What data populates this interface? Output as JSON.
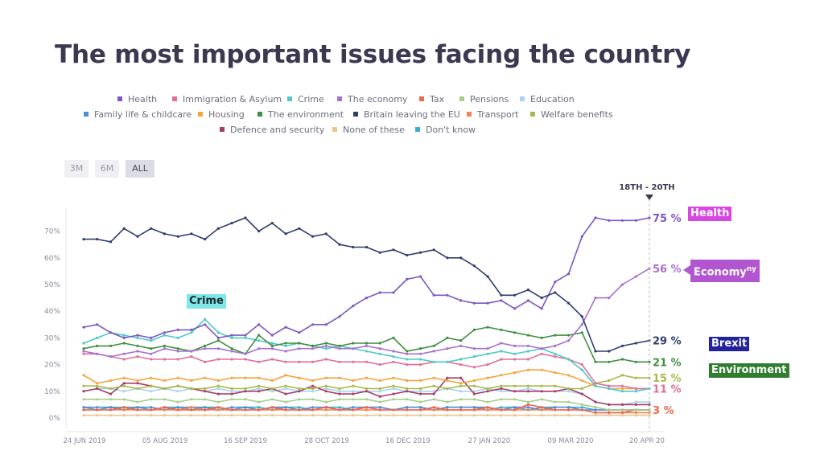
{
  "page": {
    "title": "The most important issues facing the country"
  },
  "controls": {
    "ranges": [
      {
        "label": "3M",
        "active": false
      },
      {
        "label": "6M",
        "active": false
      },
      {
        "label": "ALL",
        "active": true
      }
    ]
  },
  "legend": [
    {
      "name": "Health",
      "color": "#7e57c2"
    },
    {
      "name": "Immigration & Asylum",
      "color": "#e0709a"
    },
    {
      "name": "Crime",
      "color": "#4fc9c9"
    },
    {
      "name": "The economy",
      "color": "#a871cf"
    },
    {
      "name": "Tax",
      "color": "#f0674b"
    },
    {
      "name": "Pensions",
      "color": "#a6cf8c"
    },
    {
      "name": "Education",
      "color": "#a9d3ee"
    },
    {
      "name": "Family life & childcare",
      "color": "#4f8fd8"
    },
    {
      "name": "Housing",
      "color": "#f5a33d"
    },
    {
      "name": "The environment",
      "color": "#3f8f3f"
    },
    {
      "name": "Britain leaving the EU",
      "color": "#2e3f6e"
    },
    {
      "name": "Transport",
      "color": "#f28452"
    },
    {
      "name": "Welfare benefits",
      "color": "#a9b947"
    },
    {
      "name": "Defence and security",
      "color": "#a63e6a"
    },
    {
      "name": "None of these",
      "color": "#eec48c"
    },
    {
      "name": "Don't know",
      "color": "#3aaed0"
    }
  ],
  "annotations": {
    "date_marker": "18TH - 20TH",
    "crime_tag": "Crime",
    "health_tag": "Health",
    "economy_tag": "Economy",
    "economy_tag_suffix": "ny",
    "brexit_tag": "Brexit",
    "environment_tag": "Environment",
    "colors": {
      "crime_bg": "#7fe7e7",
      "crime_fg": "#1e2a30",
      "health_bg": "#d845e0",
      "economy_bg": "#b155d0",
      "brexit_bg": "#23239c",
      "environment_bg": "#2f7d2f"
    }
  },
  "end_labels": [
    {
      "text": "75 %",
      "value": 75,
      "color": "#7e57c2"
    },
    {
      "text": "56 %",
      "value": 56,
      "color": "#a871cf"
    },
    {
      "text": "29 %",
      "value": 29,
      "color": "#2e3f6e"
    },
    {
      "text": "21 %",
      "value": 21,
      "color": "#3f8f3f"
    },
    {
      "text": "15 %",
      "value": 15,
      "color": "#a9b947"
    },
    {
      "text": "11 %",
      "value": 11,
      "color": "#e0709a"
    },
    {
      "text": "3 %",
      "value": 3,
      "color": "#f0674b"
    }
  ],
  "chart_data": {
    "type": "line",
    "title": "The most important issues facing the country",
    "xlabel": "",
    "ylabel": "",
    "ylim": [
      0,
      75
    ],
    "yticks": [
      "0%",
      "10%",
      "20%",
      "30%",
      "40%",
      "50%",
      "60%",
      "70%"
    ],
    "ytick_values": [
      0,
      10,
      20,
      30,
      40,
      50,
      60,
      70
    ],
    "xticks": [
      "24 JUN 2019",
      "05 AUG 2019",
      "16 SEP 2019",
      "28 OCT 2019",
      "16 DEC 2019",
      "27 JAN 2020",
      "09 MAR 2020",
      "20 APR 20"
    ],
    "grid": false,
    "legend_position": "top",
    "series": [
      {
        "name": "Britain leaving the EU",
        "color": "#2e3f6e",
        "values": [
          67,
          67,
          66,
          71,
          68,
          71,
          69,
          68,
          69,
          67,
          71,
          73,
          75,
          70,
          73,
          69,
          71,
          68,
          69,
          65,
          64,
          64,
          62,
          63,
          61,
          62,
          63,
          60,
          60,
          57,
          53,
          46,
          46,
          48,
          45,
          47,
          43,
          38,
          25,
          25,
          27,
          28,
          29
        ]
      },
      {
        "name": "Health",
        "color": "#7e57c2",
        "values": [
          34,
          35,
          32,
          30,
          31,
          30,
          32,
          33,
          33,
          35,
          30,
          31,
          31,
          35,
          31,
          34,
          32,
          35,
          35,
          38,
          42,
          45,
          47,
          47,
          52,
          53,
          46,
          46,
          44,
          43,
          43,
          44,
          41,
          44,
          41,
          51,
          54,
          68,
          75,
          74,
          74,
          74,
          75
        ]
      },
      {
        "name": "The economy",
        "color": "#a871cf",
        "values": [
          25,
          24,
          23,
          24,
          25,
          24,
          26,
          25,
          25,
          26,
          26,
          25,
          24,
          26,
          26,
          25,
          26,
          26,
          27,
          26,
          26,
          27,
          26,
          25,
          24,
          24,
          25,
          26,
          27,
          26,
          26,
          28,
          27,
          27,
          26,
          27,
          29,
          35,
          45,
          45,
          50,
          53,
          56
        ]
      },
      {
        "name": "The environment",
        "color": "#3f8f3f",
        "values": [
          26,
          27,
          27,
          28,
          27,
          26,
          27,
          26,
          25,
          27,
          29,
          26,
          24,
          31,
          27,
          28,
          28,
          27,
          28,
          27,
          28,
          28,
          28,
          30,
          25,
          26,
          27,
          30,
          29,
          33,
          34,
          33,
          32,
          31,
          30,
          31,
          31,
          32,
          21,
          21,
          22,
          21,
          21
        ]
      },
      {
        "name": "Crime",
        "color": "#4fc9c9",
        "values": [
          28,
          30,
          32,
          31,
          30,
          29,
          31,
          30,
          32,
          37,
          32,
          30,
          30,
          29,
          28,
          27,
          28,
          27,
          26,
          27,
          26,
          25,
          24,
          23,
          22,
          22,
          21,
          21,
          22,
          23,
          24,
          25,
          24,
          25,
          26,
          24,
          22,
          18,
          12,
          11,
          10,
          10,
          11
        ]
      },
      {
        "name": "Immigration & Asylum",
        "color": "#e0709a",
        "values": [
          24,
          24,
          23,
          22,
          23,
          22,
          22,
          22,
          23,
          21,
          22,
          22,
          22,
          21,
          22,
          21,
          21,
          21,
          22,
          21,
          21,
          21,
          20,
          21,
          20,
          20,
          21,
          21,
          20,
          19,
          20,
          22,
          22,
          22,
          24,
          23,
          22,
          20,
          13,
          12,
          12,
          11,
          11
        ]
      },
      {
        "name": "Housing",
        "color": "#f5a33d",
        "values": [
          16,
          13,
          14,
          15,
          14,
          15,
          14,
          15,
          14,
          15,
          14,
          15,
          15,
          15,
          14,
          16,
          15,
          14,
          15,
          15,
          14,
          15,
          14,
          15,
          14,
          14,
          15,
          14,
          13,
          14,
          15,
          16,
          17,
          18,
          18,
          17,
          16,
          14,
          12,
          11,
          11,
          11,
          11
        ]
      },
      {
        "name": "Welfare benefits",
        "color": "#a9b947",
        "values": [
          12,
          12,
          11,
          12,
          11,
          12,
          11,
          12,
          11,
          11,
          12,
          11,
          11,
          12,
          11,
          12,
          11,
          11,
          12,
          11,
          12,
          11,
          11,
          12,
          11,
          11,
          12,
          11,
          12,
          12,
          11,
          12,
          12,
          12,
          12,
          12,
          11,
          11,
          13,
          14,
          16,
          15,
          15
        ]
      },
      {
        "name": "Defence and security",
        "color": "#a63e6a",
        "values": [
          10,
          11,
          9,
          13,
          13,
          12,
          11,
          12,
          11,
          10,
          9,
          9,
          10,
          10,
          11,
          9,
          10,
          12,
          10,
          9,
          9,
          10,
          8,
          9,
          10,
          9,
          9,
          15,
          15,
          9,
          10,
          11,
          10,
          10,
          10,
          10,
          11,
          9,
          6,
          5,
          5,
          5,
          5
        ]
      },
      {
        "name": "Education",
        "color": "#a9d3ee",
        "values": [
          10,
          11,
          11,
          10,
          11,
          10,
          11,
          10,
          11,
          10,
          11,
          10,
          10,
          11,
          10,
          11,
          10,
          10,
          11,
          10,
          10,
          10,
          10,
          11,
          10,
          10,
          10,
          11,
          10,
          10,
          11,
          10,
          10,
          11,
          10,
          10,
          10,
          9,
          6,
          5,
          5,
          6,
          6
        ]
      },
      {
        "name": "Pensions",
        "color": "#a6cf8c",
        "values": [
          7,
          7,
          7,
          7,
          6,
          7,
          7,
          6,
          7,
          7,
          6,
          7,
          7,
          6,
          7,
          6,
          7,
          7,
          6,
          7,
          7,
          7,
          6,
          7,
          7,
          6,
          7,
          6,
          7,
          7,
          6,
          7,
          7,
          6,
          7,
          6,
          6,
          5,
          4,
          3,
          3,
          3,
          3
        ]
      },
      {
        "name": "Tax",
        "color": "#f0674b",
        "values": [
          3,
          3,
          3,
          4,
          3,
          3,
          4,
          3,
          3,
          3,
          4,
          3,
          3,
          3,
          4,
          3,
          3,
          3,
          4,
          3,
          3,
          4,
          3,
          3,
          3,
          3,
          4,
          3,
          3,
          3,
          4,
          3,
          3,
          5,
          4,
          3,
          3,
          3,
          2,
          2,
          2,
          3,
          3
        ]
      },
      {
        "name": "Transport",
        "color": "#f28452",
        "values": [
          3,
          3,
          3,
          3,
          3,
          3,
          3,
          3,
          4,
          3,
          3,
          3,
          3,
          3,
          3,
          3,
          3,
          3,
          3,
          3,
          3,
          3,
          3,
          3,
          3,
          3,
          3,
          3,
          3,
          3,
          3,
          3,
          3,
          3,
          3,
          3,
          3,
          3,
          2,
          2,
          2,
          2,
          2
        ]
      },
      {
        "name": "Family life & childcare",
        "color": "#4f8fd8",
        "values": [
          4,
          4,
          4,
          3,
          4,
          4,
          3,
          4,
          4,
          4,
          3,
          4,
          4,
          3,
          4,
          4,
          3,
          4,
          4,
          3,
          4,
          4,
          4,
          3,
          4,
          4,
          3,
          4,
          4,
          4,
          4,
          3,
          4,
          4,
          3,
          4,
          4,
          3,
          3,
          3,
          3,
          3,
          3
        ]
      },
      {
        "name": "Don't know",
        "color": "#3aaed0",
        "values": [
          4,
          3,
          4,
          4,
          4,
          3,
          4,
          4,
          3,
          4,
          4,
          3,
          4,
          4,
          3,
          4,
          4,
          3,
          4,
          4,
          3,
          4,
          4,
          3,
          4,
          4,
          3,
          4,
          4,
          4,
          3,
          4,
          4,
          3,
          4,
          4,
          4,
          4,
          3,
          3,
          3,
          3,
          3
        ]
      },
      {
        "name": "None of these",
        "color": "#eec48c",
        "values": [
          1,
          1,
          1,
          1,
          1,
          1,
          1,
          1,
          1,
          1,
          1,
          1,
          1,
          1,
          1,
          1,
          1,
          1,
          1,
          1,
          1,
          1,
          1,
          1,
          1,
          1,
          1,
          1,
          1,
          1,
          1,
          1,
          1,
          1,
          1,
          1,
          1,
          1,
          1,
          1,
          1,
          1,
          1
        ]
      }
    ]
  }
}
